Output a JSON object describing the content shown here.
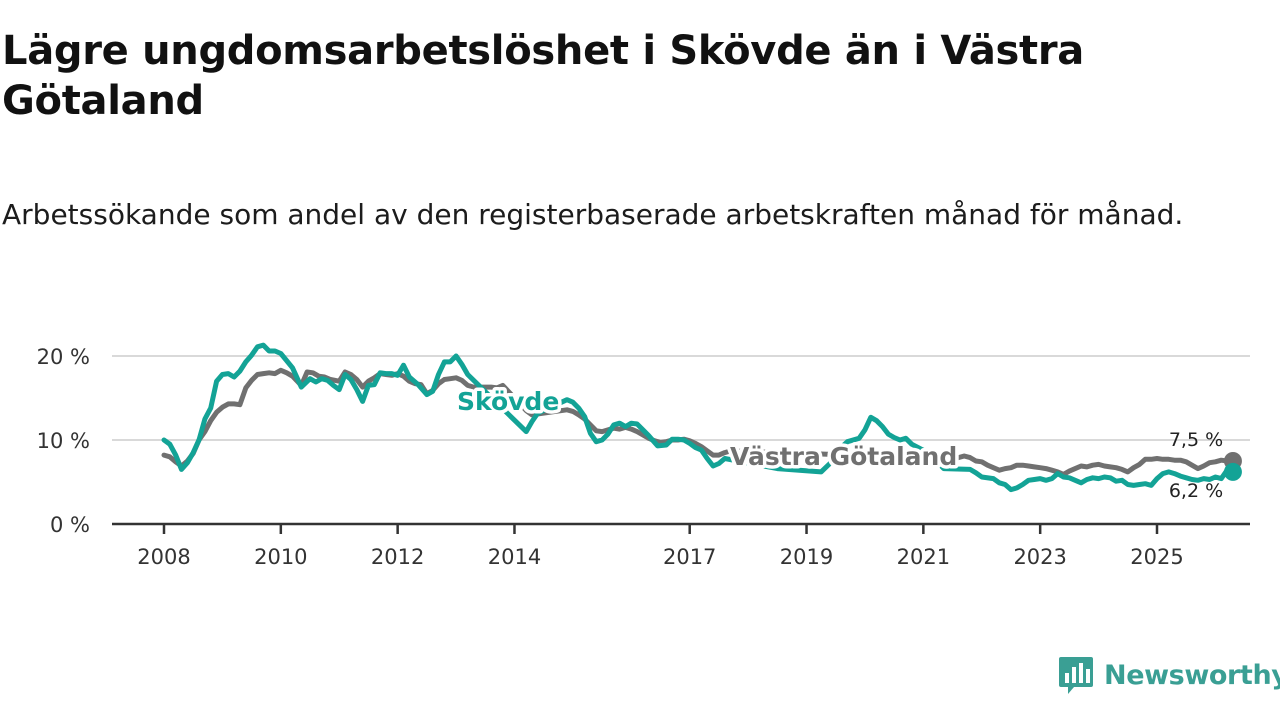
{
  "title": "Lägre ungdomsarbetslöshet i Skövde än i Västra Götaland",
  "subtitle": "Arbetssökande som andel av den registerbaserade arbetskraften månad för månad.",
  "brand": {
    "name": "Newsworthy",
    "icon": "newsworthy-logo-icon",
    "color": "#3a9f94"
  },
  "colors": {
    "skovde": "#13a396",
    "vastra": "#707070",
    "grid": "#d9d9d9",
    "axis": "#333333"
  },
  "chart_data": {
    "type": "line",
    "xlim": [
      2008,
      2026.55
    ],
    "ylim": [
      0,
      20
    ],
    "y_ticks": [
      0,
      10,
      20
    ],
    "y_tick_labels": [
      "0 %",
      "10 %",
      "20 %"
    ],
    "x_ticks": [
      2008,
      2010,
      2012,
      2014,
      2017,
      2019,
      2021,
      2023,
      2025
    ],
    "x_tick_labels": [
      "2008",
      "2010",
      "2012",
      "2014",
      "2017",
      "2019",
      "2021",
      "2023",
      "2025"
    ],
    "grid": true,
    "series": [
      {
        "name": "Skövde",
        "label": "Skövde",
        "color": "#13a396",
        "end_label": "6,2 %",
        "points": [
          [
            2008.0,
            10.0
          ],
          [
            2008.1,
            9.5
          ],
          [
            2008.2,
            8.2
          ],
          [
            2008.3,
            6.5
          ],
          [
            2008.4,
            7.3
          ],
          [
            2008.5,
            8.5
          ],
          [
            2008.6,
            10.0
          ],
          [
            2008.7,
            12.5
          ],
          [
            2008.8,
            13.8
          ],
          [
            2008.9,
            17.0
          ],
          [
            2009.0,
            17.8
          ],
          [
            2009.1,
            17.9
          ],
          [
            2009.2,
            17.5
          ],
          [
            2009.3,
            18.2
          ],
          [
            2009.4,
            19.3
          ],
          [
            2009.5,
            20.1
          ],
          [
            2009.6,
            21.1
          ],
          [
            2009.7,
            21.3
          ],
          [
            2009.8,
            20.6
          ],
          [
            2009.9,
            20.6
          ],
          [
            2010.0,
            20.3
          ],
          [
            2010.2,
            18.6
          ],
          [
            2010.35,
            16.3
          ],
          [
            2010.5,
            17.3
          ],
          [
            2010.6,
            16.9
          ],
          [
            2010.7,
            17.3
          ],
          [
            2010.8,
            17.1
          ],
          [
            2010.9,
            16.5
          ],
          [
            2011.0,
            16.0
          ],
          [
            2011.1,
            17.8
          ],
          [
            2011.2,
            17.2
          ],
          [
            2011.3,
            16.0
          ],
          [
            2011.4,
            14.6
          ],
          [
            2011.5,
            16.5
          ],
          [
            2011.6,
            16.6
          ],
          [
            2011.7,
            18.0
          ],
          [
            2011.8,
            17.9
          ],
          [
            2011.9,
            17.9
          ],
          [
            2012.0,
            17.7
          ],
          [
            2012.1,
            18.9
          ],
          [
            2012.2,
            17.5
          ],
          [
            2012.35,
            16.6
          ],
          [
            2012.5,
            15.4
          ],
          [
            2012.6,
            15.8
          ],
          [
            2012.7,
            17.8
          ],
          [
            2012.8,
            19.3
          ],
          [
            2012.9,
            19.3
          ],
          [
            2013.0,
            20.0
          ],
          [
            2013.1,
            19.0
          ],
          [
            2013.2,
            17.8
          ],
          [
            2014.2,
            11.0
          ],
          [
            2014.3,
            12.2
          ],
          [
            2014.4,
            13.2
          ],
          [
            2014.9,
            14.8
          ],
          [
            2015.0,
            14.5
          ],
          [
            2015.1,
            13.8
          ],
          [
            2015.2,
            12.8
          ],
          [
            2015.3,
            10.8
          ],
          [
            2015.4,
            9.8
          ],
          [
            2015.5,
            10.0
          ],
          [
            2015.6,
            10.7
          ],
          [
            2015.7,
            11.8
          ],
          [
            2015.8,
            12.0
          ],
          [
            2015.9,
            11.6
          ],
          [
            2016.0,
            12.0
          ],
          [
            2016.1,
            11.9
          ],
          [
            2016.2,
            11.2
          ],
          [
            2016.3,
            10.5
          ],
          [
            2016.45,
            9.3
          ],
          [
            2016.6,
            9.4
          ],
          [
            2016.7,
            10.1
          ],
          [
            2016.8,
            10.1
          ],
          [
            2016.9,
            10.0
          ],
          [
            2017.0,
            9.6
          ],
          [
            2017.1,
            9.1
          ],
          [
            2017.2,
            8.8
          ],
          [
            2017.3,
            7.8
          ],
          [
            2017.4,
            6.9
          ],
          [
            2017.5,
            7.2
          ],
          [
            2017.6,
            7.8
          ],
          [
            2018.5,
            6.6
          ],
          [
            2019.25,
            6.2
          ],
          [
            2019.4,
            7.2
          ],
          [
            2019.5,
            8.5
          ],
          [
            2019.7,
            9.8
          ],
          [
            2019.9,
            10.2
          ],
          [
            2020.0,
            11.2
          ],
          [
            2020.1,
            12.7
          ],
          [
            2020.2,
            12.3
          ],
          [
            2020.3,
            11.6
          ],
          [
            2020.4,
            10.7
          ],
          [
            2020.5,
            10.3
          ],
          [
            2020.6,
            10.0
          ],
          [
            2020.7,
            10.2
          ],
          [
            2020.8,
            9.5
          ],
          [
            2021.1,
            8.4
          ],
          [
            2021.35,
            6.6
          ],
          [
            2021.8,
            6.5
          ],
          [
            2021.9,
            6.1
          ],
          [
            2022.0,
            5.6
          ],
          [
            2022.2,
            5.4
          ],
          [
            2022.3,
            4.9
          ],
          [
            2022.4,
            4.7
          ],
          [
            2022.5,
            4.1
          ],
          [
            2022.6,
            4.3
          ],
          [
            2022.7,
            4.7
          ],
          [
            2022.8,
            5.2
          ],
          [
            2022.9,
            5.3
          ],
          [
            2023.0,
            5.4
          ],
          [
            2023.1,
            5.2
          ],
          [
            2023.2,
            5.4
          ],
          [
            2023.3,
            6.0
          ],
          [
            2023.4,
            5.6
          ],
          [
            2023.5,
            5.5
          ],
          [
            2023.6,
            5.2
          ],
          [
            2023.7,
            4.9
          ],
          [
            2023.8,
            5.3
          ],
          [
            2023.9,
            5.5
          ],
          [
            2024.0,
            5.4
          ],
          [
            2024.1,
            5.6
          ],
          [
            2024.2,
            5.5
          ],
          [
            2024.3,
            5.1
          ],
          [
            2024.4,
            5.2
          ],
          [
            2024.5,
            4.7
          ],
          [
            2024.6,
            4.6
          ],
          [
            2024.7,
            4.7
          ],
          [
            2024.8,
            4.8
          ],
          [
            2024.9,
            4.6
          ],
          [
            2025.0,
            5.4
          ],
          [
            2025.1,
            6.0
          ],
          [
            2025.2,
            6.2
          ],
          [
            2025.3,
            6.0
          ],
          [
            2025.4,
            5.7
          ],
          [
            2025.5,
            5.5
          ],
          [
            2025.6,
            5.3
          ],
          [
            2025.7,
            5.2
          ],
          [
            2025.8,
            5.4
          ],
          [
            2025.9,
            5.3
          ],
          [
            2026.0,
            5.6
          ],
          [
            2026.1,
            5.4
          ],
          [
            2026.2,
            6.4
          ],
          [
            2026.3,
            6.2
          ]
        ]
      },
      {
        "name": "Västra Götaland",
        "label": "Västra Götaland",
        "color": "#707070",
        "end_label": "7,5 %",
        "points": [
          [
            2008.0,
            8.2
          ],
          [
            2008.1,
            8.0
          ],
          [
            2008.2,
            7.4
          ],
          [
            2008.3,
            6.9
          ],
          [
            2008.4,
            7.5
          ],
          [
            2008.5,
            8.4
          ],
          [
            2008.6,
            10.0
          ],
          [
            2008.7,
            11.0
          ],
          [
            2008.8,
            12.3
          ],
          [
            2008.9,
            13.3
          ],
          [
            2009.0,
            13.9
          ],
          [
            2009.1,
            14.3
          ],
          [
            2009.2,
            14.3
          ],
          [
            2009.3,
            14.2
          ],
          [
            2009.4,
            16.2
          ],
          [
            2009.5,
            17.1
          ],
          [
            2009.6,
            17.8
          ],
          [
            2009.7,
            17.9
          ],
          [
            2009.8,
            18.0
          ],
          [
            2009.9,
            17.9
          ],
          [
            2010.0,
            18.3
          ],
          [
            2010.1,
            18.0
          ],
          [
            2010.2,
            17.6
          ],
          [
            2010.35,
            16.5
          ],
          [
            2010.4,
            17.3
          ],
          [
            2010.45,
            18.1
          ],
          [
            2010.55,
            18.0
          ],
          [
            2010.65,
            17.6
          ],
          [
            2010.75,
            17.5
          ],
          [
            2010.85,
            17.2
          ],
          [
            2011.0,
            17.0
          ],
          [
            2011.1,
            18.1
          ],
          [
            2011.2,
            17.8
          ],
          [
            2011.3,
            17.2
          ],
          [
            2011.4,
            16.3
          ],
          [
            2011.5,
            17.0
          ],
          [
            2011.6,
            17.4
          ],
          [
            2011.7,
            17.9
          ],
          [
            2011.8,
            17.8
          ],
          [
            2011.9,
            17.7
          ],
          [
            2012.0,
            17.9
          ],
          [
            2012.1,
            17.6
          ],
          [
            2012.2,
            17.0
          ],
          [
            2012.3,
            16.7
          ],
          [
            2012.4,
            16.6
          ],
          [
            2012.5,
            15.5
          ],
          [
            2012.6,
            15.9
          ],
          [
            2012.7,
            16.7
          ],
          [
            2012.8,
            17.2
          ],
          [
            2012.9,
            17.3
          ],
          [
            2013.0,
            17.4
          ],
          [
            2013.1,
            17.1
          ],
          [
            2013.2,
            16.5
          ],
          [
            2013.3,
            16.3
          ],
          [
            2013.6,
            16.3
          ],
          [
            2013.7,
            16.2
          ],
          [
            2013.8,
            16.5
          ],
          [
            2014.2,
            13.5
          ],
          [
            2014.3,
            13.0
          ],
          [
            2014.9,
            13.6
          ],
          [
            2015.0,
            13.4
          ],
          [
            2015.1,
            13.0
          ],
          [
            2015.2,
            12.5
          ],
          [
            2015.3,
            11.8
          ],
          [
            2015.4,
            11.1
          ],
          [
            2015.5,
            11.0
          ],
          [
            2015.6,
            11.2
          ],
          [
            2015.7,
            11.4
          ],
          [
            2015.8,
            11.3
          ],
          [
            2015.9,
            11.5
          ],
          [
            2016.0,
            11.3
          ],
          [
            2016.1,
            11.0
          ],
          [
            2016.2,
            10.6
          ],
          [
            2016.3,
            10.2
          ],
          [
            2016.4,
            9.9
          ],
          [
            2016.5,
            9.7
          ],
          [
            2016.6,
            9.8
          ],
          [
            2016.7,
            10.0
          ],
          [
            2016.8,
            10.0
          ],
          [
            2016.9,
            10.1
          ],
          [
            2017.0,
            9.9
          ],
          [
            2017.1,
            9.6
          ],
          [
            2017.2,
            9.2
          ],
          [
            2017.3,
            8.7
          ],
          [
            2017.4,
            8.2
          ],
          [
            2017.5,
            8.2
          ],
          [
            2017.6,
            8.5
          ],
          [
            2017.7,
            8.7
          ],
          [
            2021.5,
            7.8
          ],
          [
            2021.6,
            7.9
          ],
          [
            2021.7,
            8.1
          ],
          [
            2021.8,
            7.9
          ],
          [
            2021.9,
            7.5
          ],
          [
            2022.0,
            7.4
          ],
          [
            2022.1,
            7.0
          ],
          [
            2022.2,
            6.7
          ],
          [
            2022.3,
            6.4
          ],
          [
            2022.4,
            6.6
          ],
          [
            2022.5,
            6.7
          ],
          [
            2022.6,
            7.0
          ],
          [
            2022.7,
            7.0
          ],
          [
            2022.8,
            6.9
          ],
          [
            2022.9,
            6.8
          ],
          [
            2023.0,
            6.7
          ],
          [
            2023.1,
            6.6
          ],
          [
            2023.2,
            6.4
          ],
          [
            2023.3,
            6.2
          ],
          [
            2023.4,
            5.9
          ],
          [
            2023.5,
            6.3
          ],
          [
            2023.6,
            6.6
          ],
          [
            2023.7,
            6.9
          ],
          [
            2023.8,
            6.8
          ],
          [
            2023.9,
            7.0
          ],
          [
            2024.0,
            7.1
          ],
          [
            2024.1,
            6.9
          ],
          [
            2024.2,
            6.8
          ],
          [
            2024.3,
            6.7
          ],
          [
            2024.4,
            6.5
          ],
          [
            2024.5,
            6.2
          ],
          [
            2024.6,
            6.7
          ],
          [
            2024.7,
            7.1
          ],
          [
            2024.8,
            7.7
          ],
          [
            2024.9,
            7.7
          ],
          [
            2025.0,
            7.8
          ],
          [
            2025.1,
            7.7
          ],
          [
            2025.2,
            7.7
          ],
          [
            2025.3,
            7.6
          ],
          [
            2025.4,
            7.6
          ],
          [
            2025.5,
            7.4
          ],
          [
            2025.6,
            7.0
          ],
          [
            2025.7,
            6.6
          ],
          [
            2025.8,
            6.9
          ],
          [
            2025.9,
            7.3
          ],
          [
            2026.0,
            7.4
          ],
          [
            2026.1,
            7.6
          ],
          [
            2026.2,
            7.5
          ],
          [
            2026.3,
            7.5
          ]
        ]
      }
    ]
  }
}
